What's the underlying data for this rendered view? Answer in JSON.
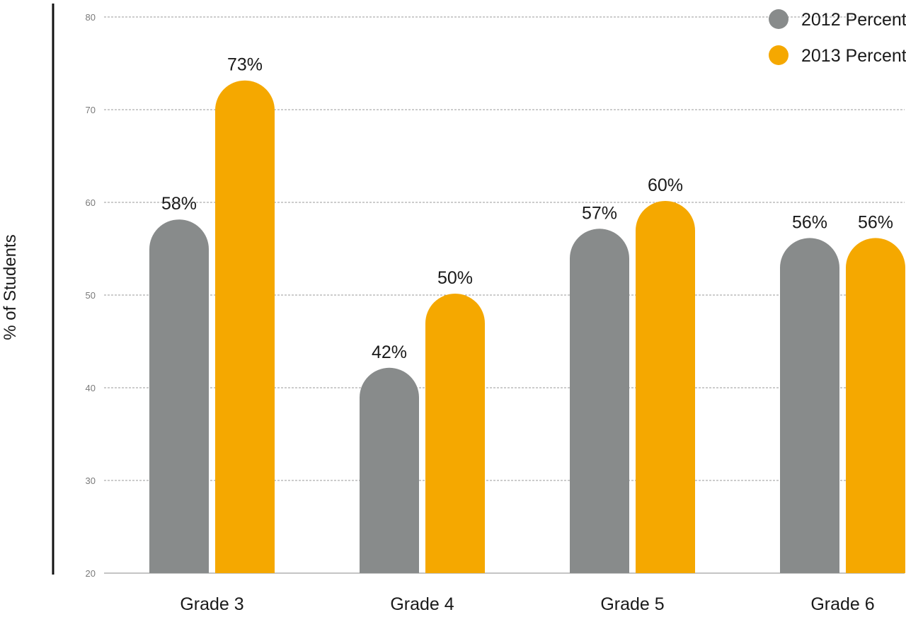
{
  "chart_data": {
    "type": "bar",
    "categories": [
      "Grade 3",
      "Grade 4",
      "Grade 5",
      "Grade 6"
    ],
    "series": [
      {
        "name": "2012 Percent",
        "values": [
          58,
          42,
          57,
          56
        ],
        "labels": [
          "58%",
          "42%",
          "57%",
          "56%"
        ],
        "color": "#888b8b"
      },
      {
        "name": "2013 Percent",
        "values": [
          73,
          50,
          60,
          56
        ],
        "labels": [
          "73%",
          "50%",
          "60%",
          "56%"
        ],
        "color": "#f5a800"
      }
    ],
    "title": "",
    "xlabel": "",
    "ylabel": "% of Students",
    "ylim": [
      20,
      80
    ],
    "yticks": [
      20,
      30,
      40,
      50,
      60,
      70,
      80
    ],
    "grid": true,
    "legend_position": "top-right"
  }
}
